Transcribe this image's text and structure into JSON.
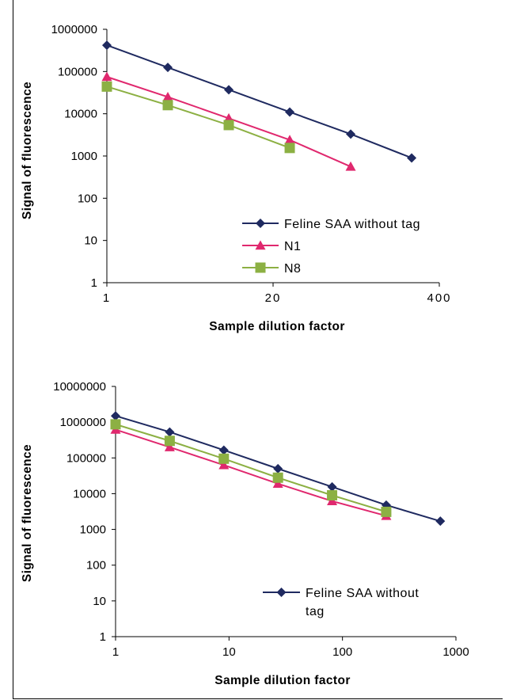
{
  "chart_data": [
    {
      "type": "line",
      "title": "",
      "xlabel": "Sample dilution factor",
      "ylabel": "Signal of fluorescence",
      "y_scale": "log",
      "ylim": [
        1,
        1000000
      ],
      "y_ticks": [
        "1",
        "10",
        "100",
        "1000",
        "10000",
        "100000",
        "1000000"
      ],
      "x_scale": "log",
      "xlim": [
        1,
        400
      ],
      "x_ticks": [
        {
          "value": 1,
          "label": "1"
        },
        {
          "value": 20,
          "label": "20"
        },
        {
          "value": 400,
          "label": "400"
        }
      ],
      "grid": false,
      "legend_position": "bottom-right",
      "x": [
        1,
        3,
        9,
        27,
        81,
        243
      ],
      "series": [
        {
          "name": "Feline SAA without tag",
          "color": "#1f2a60",
          "marker": "diamond",
          "values": [
            420000,
            125000,
            37000,
            11000,
            3300,
            900
          ]
        },
        {
          "name": "N1",
          "color": "#e0286e",
          "marker": "triangle",
          "values": [
            75000,
            25000,
            7800,
            2400,
            560,
            null
          ]
        },
        {
          "name": "N8",
          "color": "#8cb043",
          "marker": "square",
          "values": [
            44000,
            16000,
            5400,
            1550,
            null,
            null
          ]
        }
      ]
    },
    {
      "type": "line",
      "title": "",
      "xlabel": "Sample dilution factor",
      "ylabel": "Signal of fluorescence",
      "y_scale": "log",
      "ylim": [
        1,
        10000000
      ],
      "y_ticks": [
        "1",
        "10",
        "100",
        "1000",
        "10000",
        "100000",
        "1000000",
        "10000000"
      ],
      "x_scale": "log",
      "xlim": [
        1,
        1000
      ],
      "x_ticks": [
        {
          "value": 1,
          "label": "1"
        },
        {
          "value": 10,
          "label": "10"
        },
        {
          "value": 100,
          "label": "100"
        },
        {
          "value": 1000,
          "label": "1000"
        }
      ],
      "grid": false,
      "legend_position": "bottom-right",
      "x": [
        1,
        3,
        9,
        27,
        81,
        243,
        729
      ],
      "series": [
        {
          "name": "Feline SAA without tag",
          "color": "#1f2a60",
          "marker": "diamond",
          "values": [
            1500000,
            530000,
            165000,
            50000,
            15500,
            4800,
            1700
          ]
        },
        {
          "name": "",
          "color": "#e0286e",
          "marker": "triangle",
          "values": [
            620000,
            200000,
            63000,
            19000,
            6200,
            2400,
            null
          ]
        },
        {
          "name": "",
          "color": "#8cb043",
          "marker": "square",
          "values": [
            870000,
            300000,
            95000,
            28000,
            9000,
            3100,
            null
          ]
        }
      ],
      "legend_lines": [
        "Feline SAA without",
        "tag"
      ]
    }
  ]
}
